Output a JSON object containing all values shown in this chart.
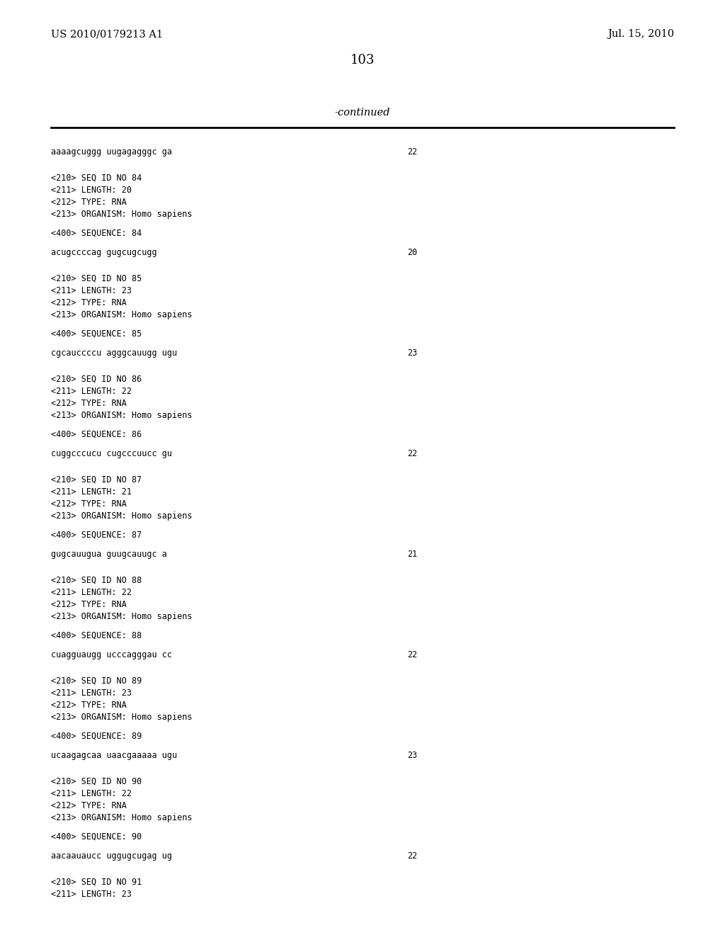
{
  "header_left": "US 2010/0179213 A1",
  "header_right": "Jul. 15, 2010",
  "page_number": "103",
  "continued_label": "-continued",
  "background_color": "#ffffff",
  "text_color": "#000000",
  "content_lines": [
    {
      "type": "sequence",
      "text": "aaaagcuggg uugagagggc ga",
      "num": "22"
    },
    {
      "type": "blank"
    },
    {
      "type": "blank"
    },
    {
      "type": "text",
      "text": "<210> SEQ ID NO 84"
    },
    {
      "type": "text",
      "text": "<211> LENGTH: 20"
    },
    {
      "type": "text",
      "text": "<212> TYPE: RNA"
    },
    {
      "type": "text",
      "text": "<213> ORGANISM: Homo sapiens"
    },
    {
      "type": "blank"
    },
    {
      "type": "text",
      "text": "<400> SEQUENCE: 84"
    },
    {
      "type": "blank"
    },
    {
      "type": "sequence",
      "text": "acugccccag gugcugcugg",
      "num": "20"
    },
    {
      "type": "blank"
    },
    {
      "type": "blank"
    },
    {
      "type": "text",
      "text": "<210> SEQ ID NO 85"
    },
    {
      "type": "text",
      "text": "<211> LENGTH: 23"
    },
    {
      "type": "text",
      "text": "<212> TYPE: RNA"
    },
    {
      "type": "text",
      "text": "<213> ORGANISM: Homo sapiens"
    },
    {
      "type": "blank"
    },
    {
      "type": "text",
      "text": "<400> SEQUENCE: 85"
    },
    {
      "type": "blank"
    },
    {
      "type": "sequence",
      "text": "cgcauccccu agggcauugg ugu",
      "num": "23"
    },
    {
      "type": "blank"
    },
    {
      "type": "blank"
    },
    {
      "type": "text",
      "text": "<210> SEQ ID NO 86"
    },
    {
      "type": "text",
      "text": "<211> LENGTH: 22"
    },
    {
      "type": "text",
      "text": "<212> TYPE: RNA"
    },
    {
      "type": "text",
      "text": "<213> ORGANISM: Homo sapiens"
    },
    {
      "type": "blank"
    },
    {
      "type": "text",
      "text": "<400> SEQUENCE: 86"
    },
    {
      "type": "blank"
    },
    {
      "type": "sequence",
      "text": "cuggcccucu cugcccuucc gu",
      "num": "22"
    },
    {
      "type": "blank"
    },
    {
      "type": "blank"
    },
    {
      "type": "text",
      "text": "<210> SEQ ID NO 87"
    },
    {
      "type": "text",
      "text": "<211> LENGTH: 21"
    },
    {
      "type": "text",
      "text": "<212> TYPE: RNA"
    },
    {
      "type": "text",
      "text": "<213> ORGANISM: Homo sapiens"
    },
    {
      "type": "blank"
    },
    {
      "type": "text",
      "text": "<400> SEQUENCE: 87"
    },
    {
      "type": "blank"
    },
    {
      "type": "sequence",
      "text": "gugcauugua guugcauugc a",
      "num": "21"
    },
    {
      "type": "blank"
    },
    {
      "type": "blank"
    },
    {
      "type": "text",
      "text": "<210> SEQ ID NO 88"
    },
    {
      "type": "text",
      "text": "<211> LENGTH: 22"
    },
    {
      "type": "text",
      "text": "<212> TYPE: RNA"
    },
    {
      "type": "text",
      "text": "<213> ORGANISM: Homo sapiens"
    },
    {
      "type": "blank"
    },
    {
      "type": "text",
      "text": "<400> SEQUENCE: 88"
    },
    {
      "type": "blank"
    },
    {
      "type": "sequence",
      "text": "cuagguaugg ucccagggau cc",
      "num": "22"
    },
    {
      "type": "blank"
    },
    {
      "type": "blank"
    },
    {
      "type": "text",
      "text": "<210> SEQ ID NO 89"
    },
    {
      "type": "text",
      "text": "<211> LENGTH: 23"
    },
    {
      "type": "text",
      "text": "<212> TYPE: RNA"
    },
    {
      "type": "text",
      "text": "<213> ORGANISM: Homo sapiens"
    },
    {
      "type": "blank"
    },
    {
      "type": "text",
      "text": "<400> SEQUENCE: 89"
    },
    {
      "type": "blank"
    },
    {
      "type": "sequence",
      "text": "ucaagagcaa uaacgaaaaa ugu",
      "num": "23"
    },
    {
      "type": "blank"
    },
    {
      "type": "blank"
    },
    {
      "type": "text",
      "text": "<210> SEQ ID NO 90"
    },
    {
      "type": "text",
      "text": "<211> LENGTH: 22"
    },
    {
      "type": "text",
      "text": "<212> TYPE: RNA"
    },
    {
      "type": "text",
      "text": "<213> ORGANISM: Homo sapiens"
    },
    {
      "type": "blank"
    },
    {
      "type": "text",
      "text": "<400> SEQUENCE: 90"
    },
    {
      "type": "blank"
    },
    {
      "type": "sequence",
      "text": "aacaauaucc uggugcugag ug",
      "num": "22"
    },
    {
      "type": "blank"
    },
    {
      "type": "blank"
    },
    {
      "type": "text",
      "text": "<210> SEQ ID NO 91"
    },
    {
      "type": "text",
      "text": "<211> LENGTH: 23"
    }
  ]
}
